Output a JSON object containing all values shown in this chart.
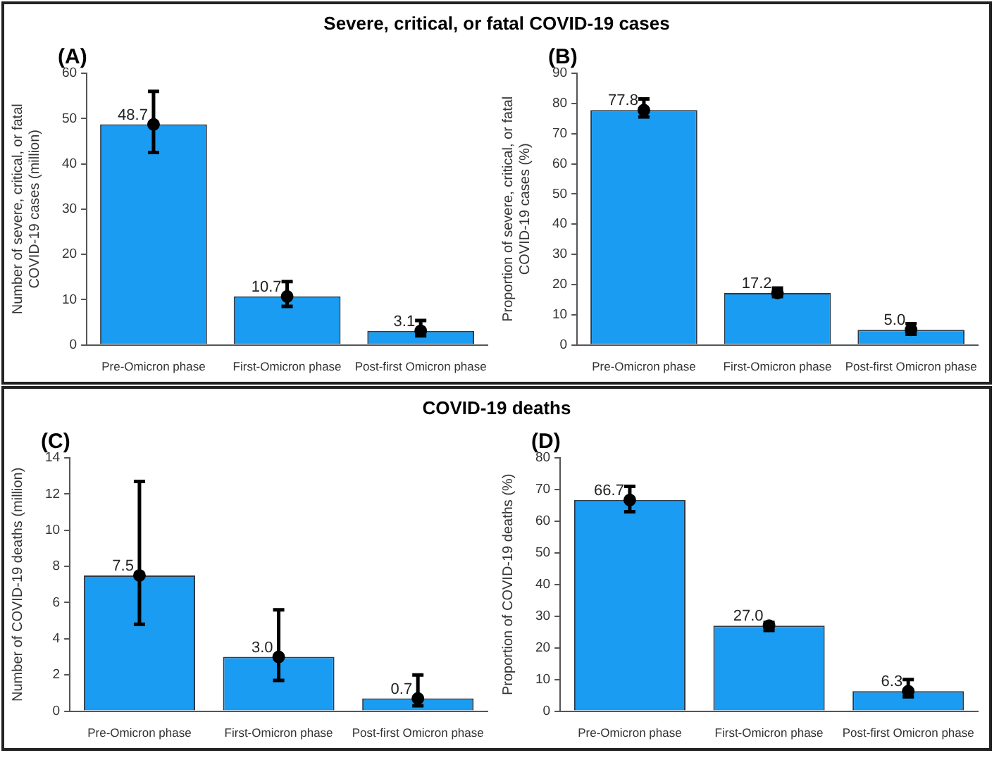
{
  "chart_data": [
    {
      "type": "bar",
      "title": "(A)",
      "annotations": [
        "Severe, critical, or fatal COVID-19 cases"
      ],
      "ylabel": "Number of severe, critical, or fatal COVID-19 cases (million)",
      "categories": [
        "Pre-Omicron phase",
        "First-Omicron phase",
        "Post-first Omicron phase"
      ],
      "ylim": [
        0,
        60
      ],
      "yticks": [
        0,
        10,
        20,
        30,
        40,
        50,
        60
      ],
      "series": [
        {
          "type": "bar",
          "color": "#1a9cf2",
          "values": [
            48.7,
            10.7,
            3.1
          ],
          "value_labels": [
            "48.7",
            "10.7",
            "3.1"
          ]
        },
        {
          "type": "scatter",
          "color": "#000000",
          "marker": "circle",
          "x": [
            "Pre-Omicron phase",
            "First-Omicron phase",
            "Post-first Omicron phase"
          ],
          "values": [
            48.7,
            10.7,
            3.1
          ],
          "errors": [
            [
              42.5,
              56
            ],
            [
              8.5,
              14
            ],
            [
              2,
              5.4
            ]
          ]
        }
      ]
    },
    {
      "type": "bar",
      "title": "(B)",
      "ylabel": "Proportion of severe, critical, or fatal COVID-19 cases (%)",
      "categories": [
        "Pre-Omicron phase",
        "First-Omicron phase",
        "Post-first Omicron phase"
      ],
      "ylim": [
        0,
        90
      ],
      "yticks": [
        0,
        10,
        20,
        30,
        40,
        50,
        60,
        70,
        80,
        90
      ],
      "series": [
        {
          "type": "bar",
          "color": "#1a9cf2",
          "values": [
            77.8,
            17.2,
            5.0
          ],
          "value_labels": [
            "77.8",
            "17.2",
            "5.0"
          ]
        },
        {
          "type": "scatter",
          "color": "#000000",
          "marker": "circle",
          "x": [
            "Pre-Omicron phase",
            "First-Omicron phase",
            "Post-first Omicron phase"
          ],
          "values": [
            77.8,
            17.2,
            5.0
          ],
          "errors": [
            [
              75.5,
              81.5
            ],
            [
              16,
              18.8
            ],
            [
              3.5,
              7
            ]
          ]
        }
      ]
    },
    {
      "type": "bar",
      "title": "(C)",
      "annotations": [
        "COVID-19 deaths"
      ],
      "ylabel": "Number of COVID-19 deaths (million)",
      "categories": [
        "Pre-Omicron phase",
        "First-Omicron phase",
        "Post-first Omicron phase"
      ],
      "ylim": [
        0,
        14
      ],
      "yticks": [
        0,
        2,
        4,
        6,
        8,
        10,
        12,
        14
      ],
      "series": [
        {
          "type": "bar",
          "color": "#1a9cf2",
          "values": [
            7.5,
            3.0,
            0.7
          ],
          "value_labels": [
            "7.5",
            "3.0",
            "0.7"
          ]
        },
        {
          "type": "scatter",
          "color": "#000000",
          "marker": "circle",
          "x": [
            "Pre-Omicron phase",
            "First-Omicron phase",
            "Post-first Omicron phase"
          ],
          "values": [
            7.5,
            3.0,
            0.7
          ],
          "errors": [
            [
              4.8,
              12.7
            ],
            [
              1.7,
              5.6
            ],
            [
              0.3,
              2.0
            ]
          ]
        }
      ]
    },
    {
      "type": "bar",
      "title": "(D)",
      "ylabel": "Proportion of COVID-19 deaths (%)",
      "categories": [
        "Pre-Omicron phase",
        "First-Omicron phase",
        "Post-first Omicron phase"
      ],
      "ylim": [
        0,
        80
      ],
      "yticks": [
        0,
        10,
        20,
        30,
        40,
        50,
        60,
        70,
        80
      ],
      "series": [
        {
          "type": "bar",
          "color": "#1a9cf2",
          "values": [
            66.7,
            27.0,
            6.3
          ],
          "value_labels": [
            "66.7",
            "27.0",
            "6.3"
          ]
        },
        {
          "type": "scatter",
          "color": "#000000",
          "marker": "circle",
          "x": [
            "Pre-Omicron phase",
            "First-Omicron phase",
            "Post-first Omicron phase"
          ],
          "values": [
            66.7,
            27.0,
            6.3
          ],
          "errors": [
            [
              63,
              71
            ],
            [
              25.5,
              28
            ],
            [
              4.5,
              10
            ]
          ]
        }
      ]
    }
  ]
}
